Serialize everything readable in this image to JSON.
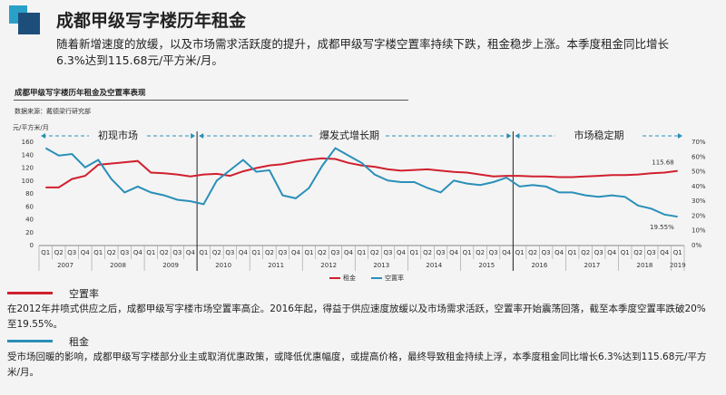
{
  "header": {
    "title": "成都甲级写字楼历年租金",
    "summary": "随着新增速度的放缓，以及市场需求活跃度的提升，成都甲级写字楼空置率持续下跌，租金稳步上涨。本季度租金同比增长6.3%达到115.68元/平方米/月。"
  },
  "chart_data": {
    "type": "line",
    "title": "成都甲级写字楼历年租金及空置率表现",
    "source": "数据来源：戴德梁行研究部",
    "y_label": "元/平方米/月",
    "annotations": [
      "初现市场",
      "爆发式增长期",
      "市场稳定期"
    ],
    "categories": [
      "Q1",
      "Q2",
      "Q3",
      "Q4",
      "Q1",
      "Q2",
      "Q3",
      "Q4",
      "Q1",
      "Q2",
      "Q3",
      "Q4",
      "Q1",
      "Q2",
      "Q3",
      "Q4",
      "Q1",
      "Q2",
      "Q3",
      "Q4",
      "Q1",
      "Q2",
      "Q3",
      "Q4",
      "Q1",
      "Q2",
      "Q3",
      "Q4",
      "Q1",
      "Q2",
      "Q3",
      "Q4",
      "Q1",
      "Q2",
      "Q3",
      "Q4",
      "Q1",
      "Q2",
      "Q3",
      "Q4",
      "Q1",
      "Q2",
      "Q3",
      "Q4",
      "Q1",
      "Q2",
      "Q3",
      "Q4",
      "Q1"
    ],
    "years": [
      "2007",
      "2008",
      "2009",
      "2010",
      "2011",
      "2012",
      "2013",
      "2014",
      "2015",
      "2016",
      "2017",
      "2018",
      "2019"
    ],
    "ylim": [
      0,
      160
    ],
    "yticks": [
      0,
      20,
      40,
      60,
      80,
      100,
      120,
      140,
      160
    ],
    "y2lim": [
      0,
      70
    ],
    "y2ticks": [
      {
        "value": 0,
        "label": "0%"
      },
      {
        "value": 10,
        "label": "10%"
      },
      {
        "value": 20,
        "label": "20%"
      },
      {
        "value": 30,
        "label": "30%"
      },
      {
        "value": 40,
        "label": "40%"
      },
      {
        "value": 50,
        "label": "50%"
      },
      {
        "value": 60,
        "label": "60%"
      },
      {
        "value": 70,
        "label": "70%"
      }
    ],
    "legend": "bottom",
    "series": [
      {
        "name": "租金",
        "color": "#d0202e",
        "axis": "y",
        "values": [
          90,
          90,
          103,
          108,
          125,
          127,
          129,
          131,
          113,
          112,
          110,
          107,
          110,
          111,
          108,
          115,
          120,
          124,
          126,
          130,
          133,
          135,
          134,
          128,
          124,
          122,
          118,
          116,
          117,
          118,
          116,
          114,
          113,
          110,
          107,
          108,
          108,
          107,
          107,
          106,
          106,
          107,
          108,
          109,
          109,
          110,
          112,
          113,
          115.68
        ]
      },
      {
        "name": "空置率",
        "color": "#2a8fb8",
        "axis": "y2",
        "values": [
          66,
          61,
          62,
          53,
          58,
          45,
          36,
          40,
          36,
          34,
          31,
          30,
          28,
          44,
          51,
          58,
          50,
          51,
          34,
          32,
          39,
          54,
          66,
          61,
          56,
          48,
          44,
          43,
          43,
          39,
          36,
          44,
          42,
          41,
          43,
          46,
          40,
          41,
          40,
          36,
          36,
          34,
          33,
          34,
          33,
          27,
          25,
          21,
          19.55
        ],
        "value_labels": [
          null,
          null,
          null,
          null,
          null,
          null,
          null,
          null,
          null,
          null,
          null,
          null,
          null,
          null,
          null,
          null,
          null,
          null,
          null,
          null,
          null,
          null,
          null,
          null,
          null,
          null,
          null,
          null,
          null,
          null,
          null,
          null,
          null,
          null,
          null,
          null,
          null,
          null,
          null,
          null,
          null,
          null,
          null,
          null,
          null,
          null,
          null,
          null,
          "19.55%"
        ]
      }
    ]
  },
  "notes": [
    {
      "label": "空置率",
      "color": "#d0202e",
      "text": "在2012年井喷式供应之后，成都甲级写字楼市场空置率高企。2016年起，得益于供应速度放缓以及市场需求活跃，空置率开始震荡回落，截至本季度空置率跌破20%至19.55%。"
    },
    {
      "label": "租金",
      "color": "#2a8fb8",
      "text": "受市场回暖的影响，成都甲级写字楼部分业主或取消优惠政策，或降低优惠幅度，或提高价格，最终导致租金持续上浮，本季度租金同比增长6.3%达到115.68元/平方米/月。"
    }
  ]
}
